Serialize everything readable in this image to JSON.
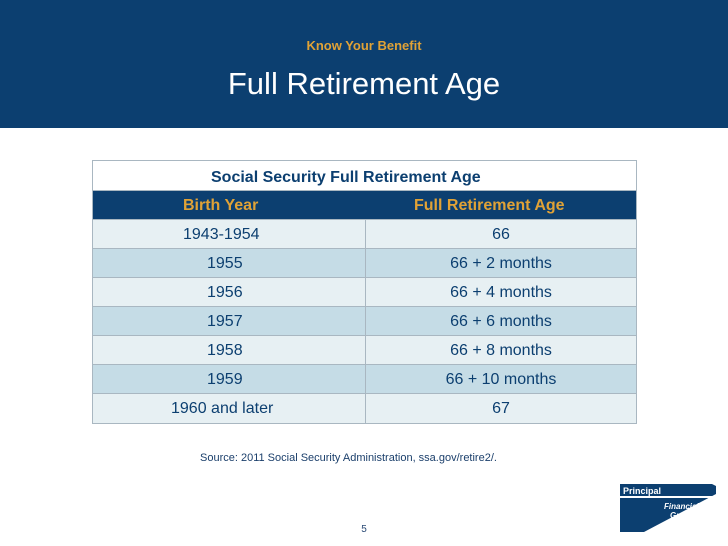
{
  "slide": {
    "eyebrow": "Know Your Benefit",
    "title": "Full Retirement Age"
  },
  "table": {
    "caption": "Social Security Full Retirement Age",
    "headers": [
      "Birth Year",
      "Full Retirement Age"
    ],
    "rows": [
      {
        "birth_year": "1943-1954",
        "fra": "66"
      },
      {
        "birth_year": "1955",
        "fra": "66 + 2 months"
      },
      {
        "birth_year": "1956",
        "fra": "66 + 4 months"
      },
      {
        "birth_year": "1957",
        "fra": "66 + 6 months"
      },
      {
        "birth_year": "1958",
        "fra": "66 + 8 months"
      },
      {
        "birth_year": "1959",
        "fra": "66 + 10 months"
      },
      {
        "birth_year": "1960 and later",
        "fra": "67"
      }
    ]
  },
  "footer": {
    "source": "Source: 2011 Social Security Administration, ssa.gov/retire2/.",
    "page_number": "5"
  },
  "logo": {
    "brand": "Principal",
    "line1": "Financial",
    "line2": "Group"
  },
  "colors": {
    "navy": "#0c3f70",
    "gold": "#e0a236",
    "row_light": "#e7f0f3",
    "row_dark": "#c5dce6"
  }
}
